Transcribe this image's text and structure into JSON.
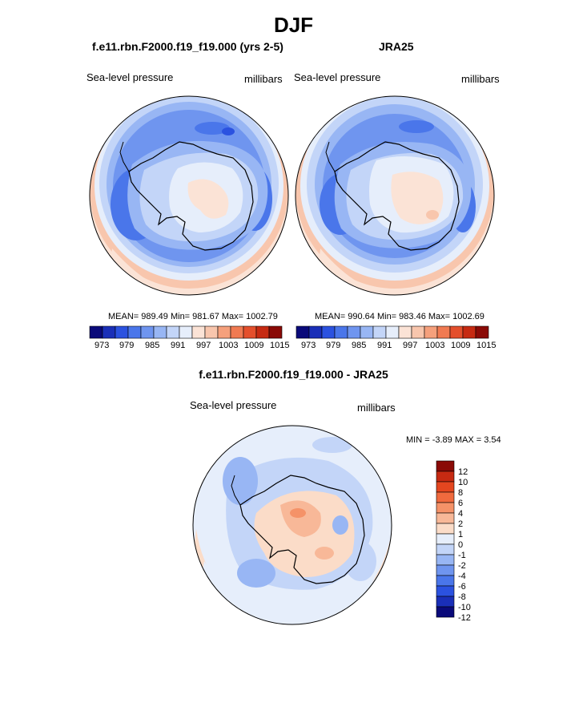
{
  "figure": {
    "season": "DJF",
    "variable": "Sea-level pressure",
    "units": "millibars",
    "model_title": "f.e11.rbn.F2000.f19_f19.000 (yrs 2-5)",
    "obs_title": "JRA25",
    "diff_title": "f.e11.rbn.F2000.f19_f19.000 - JRA25"
  },
  "model_panel": {
    "stats": "MEAN= 989.49  Min= 981.67  Max= 1002.79",
    "colorbar_ticks": [
      "973",
      "979",
      "985",
      "991",
      "997",
      "1003",
      "1009",
      "1015"
    ]
  },
  "obs_panel": {
    "stats": "MEAN= 990.64  Min= 983.46  Max= 1002.69",
    "colorbar_ticks": [
      "973",
      "979",
      "985",
      "991",
      "997",
      "1003",
      "1009",
      "1015"
    ]
  },
  "diff_panel": {
    "minmax": "MIN =  -3.89 MAX =   3.54",
    "colorbar_ticks": [
      "12",
      "10",
      "8",
      "6",
      "4",
      "2",
      "1",
      "0",
      "-1",
      "-2",
      "-4",
      "-6",
      "-8",
      "-10",
      "-12"
    ]
  },
  "colors": {
    "abs_palette": [
      "#0a0a7a",
      "#1a2fb8",
      "#2b52e0",
      "#4a76ea",
      "#6f95ef",
      "#98b6f4",
      "#c3d5f8",
      "#e6eefb",
      "#fbe3d6",
      "#f8c6ad",
      "#f5a07c",
      "#f07a52",
      "#e44f2c",
      "#c62a12",
      "#8a0a06"
    ],
    "diff_palette": [
      "#8a0a06",
      "#c62a12",
      "#e4461f",
      "#f06a3e",
      "#f59268",
      "#f8b898",
      "#fbdcc8",
      "#e6eefb",
      "#c3d5f8",
      "#98b6f4",
      "#6f95ef",
      "#4a76ea",
      "#2b52e0",
      "#1a2fb8",
      "#0a0a7a"
    ],
    "coastline": "#000000"
  }
}
